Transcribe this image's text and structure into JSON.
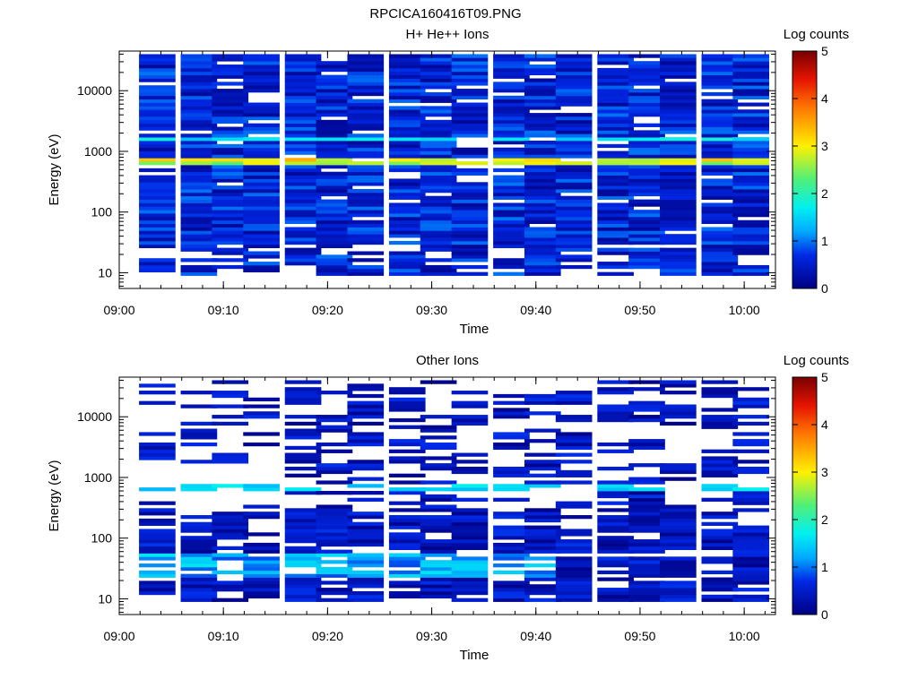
{
  "figure": {
    "title": "RPCICA160416T09.PNG"
  },
  "chart_data": [
    {
      "type": "heatmap",
      "title": "H+ He++ Ions",
      "xlabel": "Time",
      "ylabel": "Energy (eV)",
      "x_ticks": [
        "09:00",
        "09:10",
        "09:20",
        "09:30",
        "09:40",
        "09:50",
        "10:00"
      ],
      "xlim": [
        "09:00",
        "10:03"
      ],
      "y_scale": "log",
      "y_ticks": [
        "10",
        "100",
        "1000",
        "10000"
      ],
      "ylim": [
        5.5,
        45000
      ],
      "colorbar": {
        "label": "Log counts",
        "ticks": [
          "0",
          "1",
          "2",
          "3",
          "4",
          "5"
        ],
        "range": [
          0,
          5
        ]
      },
      "time_bins": [
        "09:02",
        "09:06",
        "09:09",
        "09:12",
        "09:16",
        "09:19",
        "09:22",
        "09:26",
        "09:29",
        "09:32",
        "09:36",
        "09:39",
        "09:42",
        "09:46",
        "09:49",
        "09:52",
        "09:56",
        "09:59"
      ],
      "features": [
        {
          "energy_eV": 750,
          "level": 3.0
        },
        {
          "energy_eV": 650,
          "level": 2.6
        },
        {
          "energy_eV": 1550,
          "level": 1.6
        }
      ]
    },
    {
      "type": "heatmap",
      "title": "Other Ions",
      "xlabel": "Time",
      "ylabel": "Energy (eV)",
      "x_ticks": [
        "09:00",
        "09:10",
        "09:20",
        "09:30",
        "09:40",
        "09:50",
        "10:00"
      ],
      "xlim": [
        "09:00",
        "10:03"
      ],
      "y_scale": "log",
      "y_ticks": [
        "10",
        "100",
        "1000",
        "10000"
      ],
      "ylim": [
        5.5,
        45000
      ],
      "colorbar": {
        "label": "Log counts",
        "ticks": [
          "0",
          "1",
          "2",
          "3",
          "4",
          "5"
        ],
        "range": [
          0,
          5
        ]
      },
      "time_bins": [
        "09:02",
        "09:06",
        "09:09",
        "09:12",
        "09:16",
        "09:19",
        "09:22",
        "09:26",
        "09:29",
        "09:32",
        "09:36",
        "09:39",
        "09:42",
        "09:46",
        "09:49",
        "09:52",
        "09:56",
        "09:59"
      ],
      "features": [
        {
          "energy_eV": 700,
          "level": 1.6
        },
        {
          "energy_eV": 35,
          "level": 1.5
        }
      ]
    }
  ]
}
